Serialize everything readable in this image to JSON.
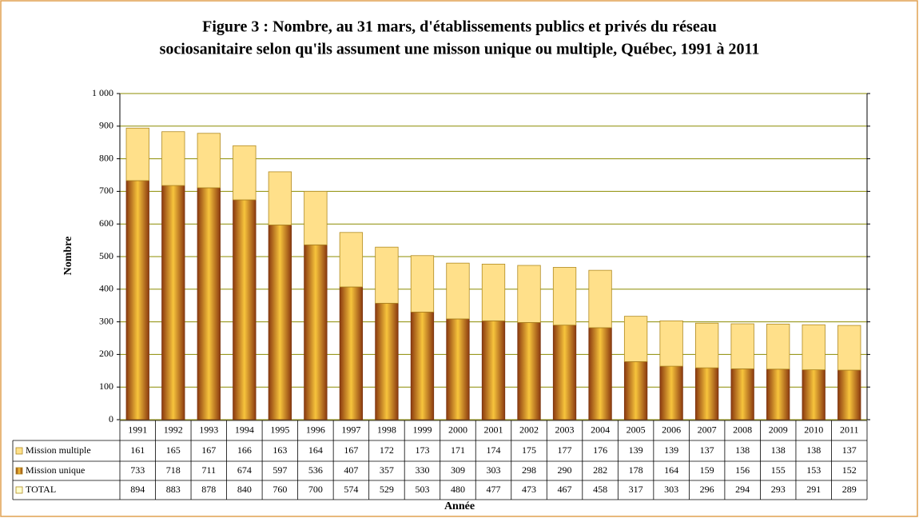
{
  "chart_data": {
    "type": "stacked_bar",
    "title": [
      "Figure 3 : Nombre, au 31 mars, d'établissements publics et privés du réseau",
      "sociosanitaire selon qu'ils assument une misson unique ou multiple, Québec, 1991 à 2011"
    ],
    "x_label": "Année",
    "y_label": "Nombre",
    "categories": [
      "1991",
      "1992",
      "1993",
      "1994",
      "1995",
      "1996",
      "1997",
      "1998",
      "1999",
      "2000",
      "2001",
      "2002",
      "2003",
      "2004",
      "2005",
      "2006",
      "2007",
      "2008",
      "2009",
      "2010",
      "2011"
    ],
    "series": [
      {
        "name": "Mission multiple",
        "color": "#ffe08a",
        "values": [
          161,
          165,
          167,
          166,
          163,
          164,
          167,
          172,
          173,
          171,
          174,
          175,
          177,
          176,
          139,
          139,
          137,
          138,
          138,
          138,
          137
        ]
      },
      {
        "name": "Mission unique",
        "color": "#8b3a0f",
        "values": [
          733,
          718,
          711,
          674,
          597,
          536,
          407,
          357,
          330,
          309,
          303,
          298,
          290,
          282,
          178,
          164,
          159,
          156,
          155,
          153,
          152
        ]
      },
      {
        "name": "TOTAL",
        "color": "#ffffcc",
        "values": [
          894,
          883,
          878,
          840,
          760,
          700,
          574,
          529,
          503,
          480,
          477,
          473,
          467,
          458,
          317,
          303,
          296,
          294,
          293,
          291,
          289
        ]
      }
    ],
    "ylim": [
      0,
      1000
    ],
    "yticks": [
      0,
      100,
      200,
      300,
      400,
      500,
      600,
      700,
      800,
      900,
      {
        "value": 1000,
        "label": "1 000"
      }
    ],
    "grid": true
  }
}
